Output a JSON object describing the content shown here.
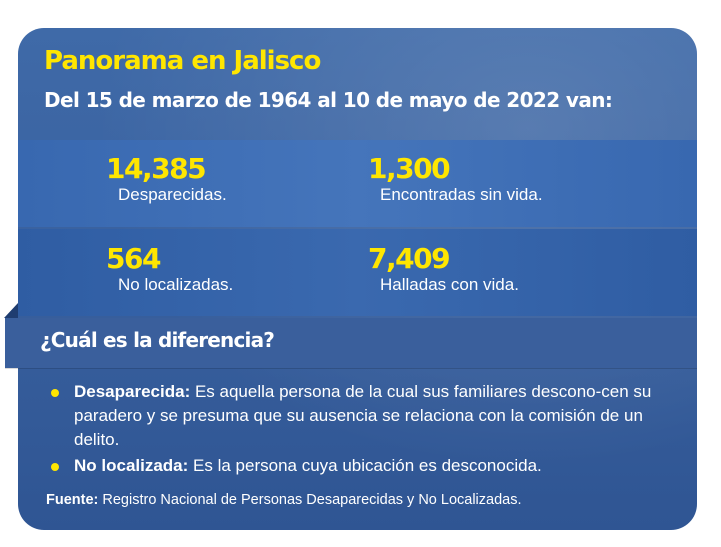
{
  "title": "Panorama en Jalisco",
  "subtitle": "Del 15 de marzo de 1964 al 10 de mayo de 2022 van:",
  "stats": [
    {
      "number": "14,385",
      "label": "Desparecidas."
    },
    {
      "number": "1,300",
      "label": "Encontradas sin vida."
    },
    {
      "number": "564",
      "label": "No localizadas."
    },
    {
      "number": "7,409",
      "label": "Halladas con vida."
    }
  ],
  "difference_heading": "¿Cuál es la diferencia?",
  "definitions": [
    {
      "term": "Desaparecida:",
      "text": " Es aquella persona de la cual sus familiares descono-cen su paradero y se presuma que su ausencia se relaciona con la comisión de un delito."
    },
    {
      "term": "No localizada:",
      "text": " Es la persona cuya ubicación es desconocida."
    }
  ],
  "source": {
    "label": "Fuente:",
    "text": " Registro Nacional de Personas Desaparecidas y No Localizadas."
  },
  "colors": {
    "accent": "#ffe600",
    "card": "#3a62a0",
    "text": "#ffffff"
  }
}
